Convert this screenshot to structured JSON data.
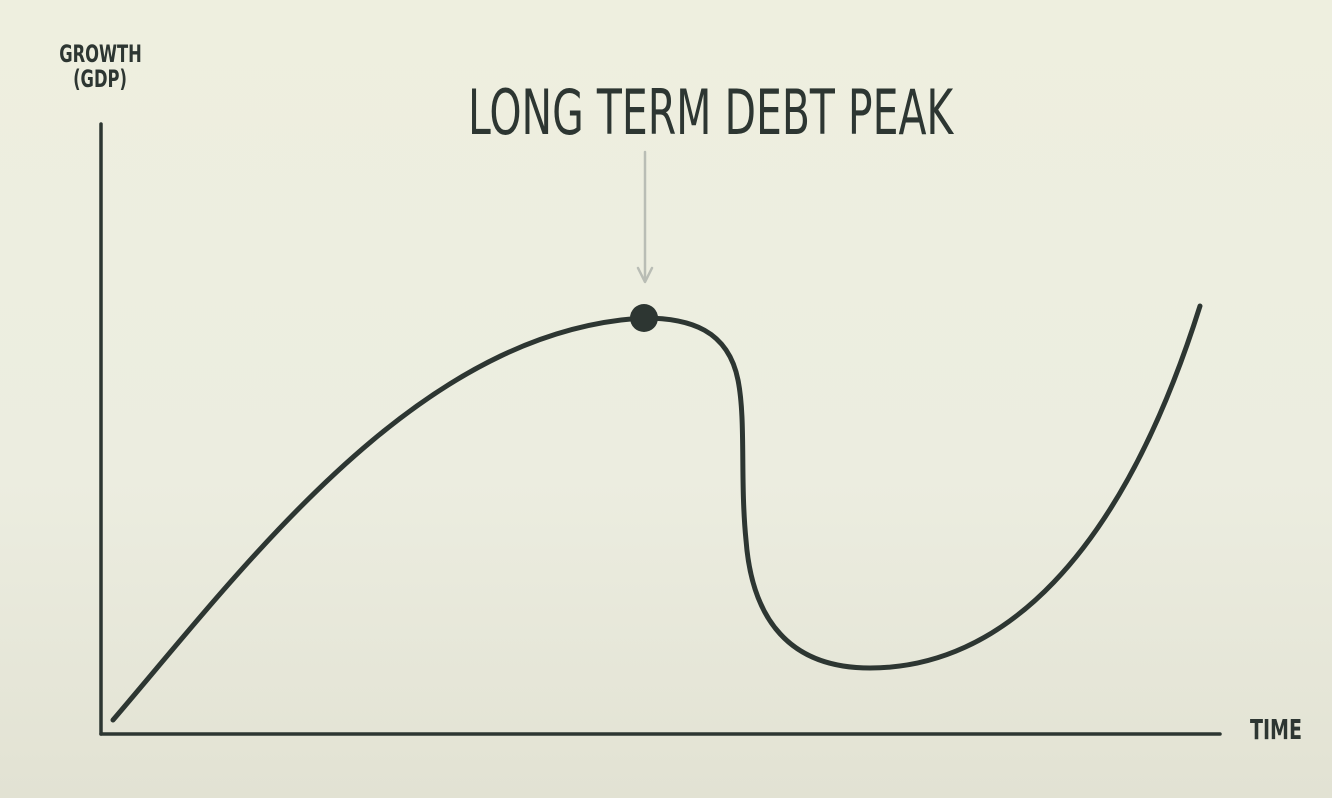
{
  "diagram": {
    "title": "LONG TERM DEBT PEAK",
    "y_axis_label_line1": "GROWTH",
    "y_axis_label_line2": "(GDP)",
    "x_axis_label": "TIME"
  },
  "colors": {
    "background": "#eeefdf",
    "ink": "#2d3632",
    "arrow": "#b9bdb5"
  }
}
